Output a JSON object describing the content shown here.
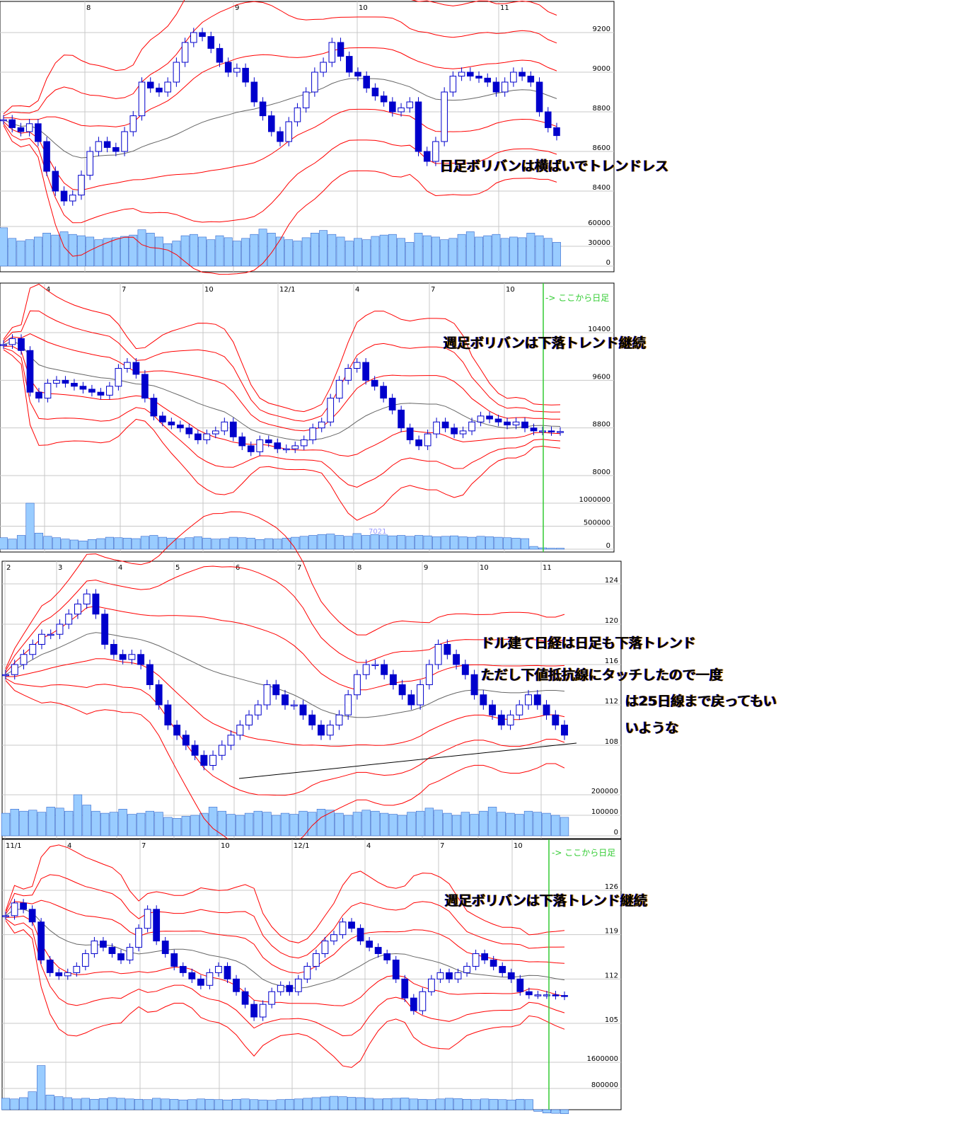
{
  "colors": {
    "bull_fill": "#ffffff",
    "candle": "#0000cc",
    "band": "#ff0000",
    "ma": "#666666",
    "volume": "#99ccff",
    "grid": "#c8c8c8",
    "marker": "#33cc33"
  },
  "annotations": {
    "p1": "日足ボリバンは横ばいでトレンドレス",
    "p2": "週足ボリバンは下落トレンド継続",
    "p3": [
      "ドル建て日経は日足も下落トレンド",
      "ただし下値抵抗線にタッチしたので一度",
      "は25日線まで戻ってもい",
      "いような"
    ],
    "p4": "週足ボリバンは下落トレンド継続",
    "daily_marker": "-> ここから日足",
    "p2_label": "7021"
  },
  "chart_data": [
    {
      "type": "candlestick",
      "timeframe": "daily",
      "x_ticks": [
        "8",
        "9",
        "10",
        "11"
      ],
      "y_ticks": [
        9200,
        9000,
        8800,
        8600,
        8400
      ],
      "ylim": [
        8300,
        9300
      ],
      "vol_ticks": [
        60000,
        30000,
        0
      ],
      "bollinger": {
        "period": 25,
        "sigmas": [
          1,
          2,
          3
        ]
      },
      "close": [
        8760,
        8720,
        8700,
        8740,
        8650,
        8500,
        8400,
        8350,
        8380,
        8480,
        8600,
        8650,
        8620,
        8600,
        8700,
        8780,
        8950,
        8920,
        8900,
        8950,
        9050,
        9150,
        9200,
        9180,
        9120,
        9050,
        9000,
        9020,
        8950,
        8850,
        8780,
        8700,
        8650,
        8750,
        8820,
        8900,
        9000,
        9050,
        9150,
        9080,
        9000,
        8980,
        8920,
        8880,
        8850,
        8800,
        8820,
        8850,
        8600,
        8550,
        8650,
        8900,
        8980,
        9000,
        8980,
        8970,
        8950,
        8900,
        8950,
        9000,
        8980,
        8950,
        8800,
        8720,
        8680
      ],
      "volume": [
        58000,
        42000,
        38000,
        40000,
        44000,
        50000,
        47000,
        52000,
        48000,
        46000,
        44000,
        40000,
        42000,
        43000,
        45000,
        47000,
        55000,
        50000,
        44000,
        34000,
        38000,
        46000,
        48000,
        44000,
        40000,
        46000,
        43000,
        38000,
        42000,
        48000,
        56000,
        50000,
        44000,
        40000,
        38000,
        43000,
        50000,
        54000,
        48000,
        44000,
        38000,
        42000,
        40000,
        45000,
        47000,
        48000,
        42000,
        36000,
        50000,
        46000,
        44000,
        40000,
        42000,
        48000,
        52000,
        44000,
        46000,
        48000,
        42000,
        44000,
        43000,
        50000,
        46000,
        42000,
        36000
      ]
    },
    {
      "type": "candlestick",
      "timeframe": "weekly",
      "x_ticks": [
        "4",
        "7",
        "10",
        "12/1",
        "4",
        "7",
        "10"
      ],
      "y_ticks": [
        10400,
        9600,
        8800,
        8000
      ],
      "ylim": [
        7700,
        10800
      ],
      "vol_ticks": [
        1000000,
        500000,
        0
      ],
      "bollinger": {
        "period": 13,
        "sigmas": [
          1,
          2,
          3
        ]
      },
      "close": [
        10200,
        10300,
        10100,
        9400,
        9300,
        9550,
        9600,
        9550,
        9500,
        9450,
        9400,
        9350,
        9500,
        9800,
        9900,
        9700,
        9300,
        9000,
        8900,
        8850,
        8800,
        8700,
        8600,
        8700,
        8750,
        8900,
        8650,
        8500,
        8400,
        8600,
        8550,
        8450,
        8450,
        8500,
        8600,
        8800,
        8900,
        9300,
        9600,
        9800,
        9900,
        9600,
        9500,
        9300,
        9100,
        8800,
        8600,
        8500,
        8700,
        8900,
        8800,
        8700,
        8750,
        8900,
        9000,
        8950,
        8900,
        8850,
        8900,
        8800,
        8750,
        8750,
        8740,
        8740
      ],
      "volume": [
        250000,
        220000,
        300000,
        1000000,
        350000,
        280000,
        250000,
        220000,
        200000,
        180000,
        210000,
        230000,
        260000,
        250000,
        240000,
        230000,
        280000,
        300000,
        260000,
        240000,
        230000,
        250000,
        270000,
        240000,
        220000,
        230000,
        260000,
        250000,
        240000,
        210000,
        230000,
        220000,
        240000,
        260000,
        280000,
        300000,
        320000,
        330000,
        300000,
        280000,
        340000,
        300000,
        320000,
        310000,
        290000,
        300000,
        280000,
        300000,
        290000,
        270000,
        280000,
        290000,
        270000,
        260000,
        280000,
        270000,
        260000,
        250000,
        240000,
        230000,
        60000,
        30000,
        20000,
        20000
      ]
    },
    {
      "type": "candlestick",
      "timeframe": "daily",
      "x_ticks": [
        "2",
        "3",
        "4",
        "5",
        "6",
        "7",
        "8",
        "9",
        "10",
        "11"
      ],
      "y_ticks": [
        124,
        120,
        116,
        112,
        108
      ],
      "ylim": [
        102,
        126
      ],
      "vol_ticks": [
        200000,
        100000,
        0
      ],
      "bollinger": {
        "period": 25,
        "sigmas": [
          1,
          2,
          3
        ]
      },
      "close": [
        115,
        116,
        117,
        118,
        119,
        119,
        120,
        121,
        122,
        123,
        121,
        118,
        117,
        116.5,
        117,
        116,
        114,
        112,
        110,
        109,
        108,
        107,
        106,
        107,
        108,
        109,
        110,
        111,
        112,
        114,
        113,
        112,
        112,
        111,
        110,
        109,
        110,
        111,
        113,
        115,
        116,
        116,
        115,
        114,
        113,
        112,
        114,
        116,
        118,
        117,
        116,
        115,
        113,
        112,
        111,
        110,
        111,
        112,
        113,
        112,
        111,
        110,
        109
      ],
      "volume": [
        110000,
        130000,
        120000,
        125000,
        115000,
        140000,
        135000,
        120000,
        200000,
        150000,
        120000,
        110000,
        115000,
        130000,
        105000,
        110000,
        120000,
        115000,
        90000,
        85000,
        95000,
        100000,
        110000,
        140000,
        120000,
        105000,
        100000,
        110000,
        120000,
        115000,
        100000,
        110000,
        105000,
        120000,
        115000,
        130000,
        125000,
        110000,
        100000,
        115000,
        125000,
        120000,
        110000,
        105000,
        100000,
        115000,
        120000,
        135000,
        125000,
        110000,
        100000,
        115000,
        105000,
        120000,
        140000,
        115000,
        110000,
        105000,
        120000,
        115000,
        110000,
        100000,
        90000
      ]
    },
    {
      "type": "candlestick",
      "timeframe": "weekly",
      "x_ticks": [
        "11/1",
        "4",
        "7",
        "10",
        "12/1",
        "4",
        "7",
        "10"
      ],
      "y_ticks": [
        126,
        119,
        112,
        105
      ],
      "ylim": [
        100,
        130
      ],
      "vol_ticks": [
        1600000,
        800000
      ],
      "bollinger": {
        "period": 13,
        "sigmas": [
          1,
          2,
          3
        ]
      },
      "close": [
        122,
        124,
        123,
        121,
        115,
        113,
        112.5,
        113,
        114,
        116,
        118,
        117,
        116,
        115,
        117,
        120,
        123,
        118,
        116,
        114,
        113,
        112,
        111,
        113,
        114,
        112,
        110,
        108,
        106,
        108,
        110,
        111,
        110,
        112,
        114,
        116,
        118,
        119,
        121,
        120,
        118,
        117,
        116,
        115,
        112,
        109,
        107,
        110,
        112,
        113,
        112,
        113,
        114,
        116,
        115,
        114,
        113,
        112,
        110,
        109.5,
        109.5,
        109.5,
        109.4,
        109.3
      ],
      "volume": [
        500000,
        480000,
        520000,
        700000,
        1500000,
        600000,
        550000,
        520000,
        480000,
        500000,
        470000,
        490000,
        520000,
        500000,
        480000,
        470000,
        460000,
        500000,
        480000,
        470000,
        450000,
        460000,
        480000,
        470000,
        460000,
        450000,
        470000,
        480000,
        460000,
        450000,
        440000,
        460000,
        470000,
        480000,
        500000,
        520000,
        540000,
        560000,
        550000,
        530000,
        520000,
        500000,
        480000,
        490000,
        500000,
        510000,
        480000,
        470000,
        460000,
        480000,
        500000,
        490000,
        470000,
        460000,
        480000,
        470000,
        460000,
        450000,
        470000,
        460000,
        100000,
        50000,
        40000,
        30000
      ]
    }
  ]
}
